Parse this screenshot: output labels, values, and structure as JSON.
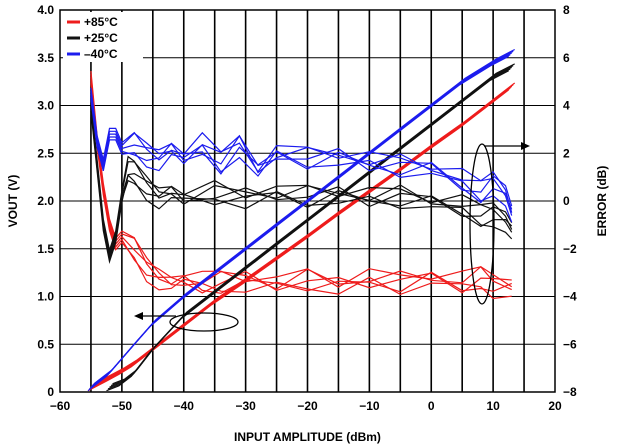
{
  "chart_data": {
    "type": "line",
    "xlabel": "INPUT AMPLITUDE (dBm)",
    "ylabel": "VOUT (V)",
    "y2label": "ERROR (dB)",
    "xlim": [
      -60,
      20
    ],
    "ylim": [
      0,
      4.0
    ],
    "y2lim": [
      -8,
      8
    ],
    "x_ticks": [
      "−60",
      "−50",
      "−40",
      "−30",
      "−20",
      "−10",
      "0",
      "10",
      "20"
    ],
    "y_ticks": [
      "0",
      "0.5",
      "1.0",
      "1.5",
      "2.0",
      "2.5",
      "3.0",
      "3.5",
      "4.0"
    ],
    "y2_ticks": [
      "−8",
      "−6",
      "−4",
      "−2",
      "0",
      "2",
      "4",
      "6",
      "8"
    ],
    "grid": true,
    "legend_position": "top-left",
    "series": [
      {
        "name": "+85°C",
        "color": "#ee1c1c",
        "vout": {
          "x": [
            -55,
            -52,
            -50,
            -48,
            -45,
            -40,
            -35,
            -30,
            -25,
            -20,
            -15,
            -10,
            -5,
            0,
            5,
            10,
            13
          ],
          "y": [
            0.05,
            0.15,
            0.22,
            0.3,
            0.45,
            0.7,
            0.95,
            1.17,
            1.4,
            1.63,
            1.87,
            2.1,
            2.33,
            2.57,
            2.8,
            3.05,
            3.2
          ]
        },
        "error": {
          "x": [
            -55,
            -54,
            -53,
            -52,
            -51,
            -50,
            -48,
            -46,
            -44,
            -42,
            -40,
            -37,
            -34,
            -30,
            -25,
            -20,
            -15,
            -10,
            -5,
            0,
            5,
            8,
            10,
            13
          ],
          "y": [
            5.2,
            2.5,
            0.5,
            -1.0,
            -1.8,
            -1.5,
            -2.0,
            -2.8,
            -3.2,
            -3.4,
            -3.3,
            -3.5,
            -3.4,
            -3.3,
            -3.5,
            -3.3,
            -3.5,
            -3.3,
            -3.4,
            -3.2,
            -3.5,
            -3.2,
            -3.5,
            -3.6
          ]
        }
      },
      {
        "name": "+25°C",
        "color": "#111111",
        "vout": {
          "x": [
            -52,
            -50,
            -48,
            -45,
            -40,
            -35,
            -30,
            -25,
            -20,
            -15,
            -10,
            -5,
            0,
            5,
            10,
            13
          ],
          "y": [
            0.05,
            0.1,
            0.2,
            0.45,
            0.8,
            1.05,
            1.3,
            1.55,
            1.8,
            2.05,
            2.3,
            2.55,
            2.8,
            3.05,
            3.3,
            3.4
          ]
        },
        "error": {
          "x": [
            -55,
            -54,
            -53,
            -52,
            -51,
            -50,
            -49,
            -48,
            -46,
            -44,
            -42,
            -40,
            -35,
            -30,
            -25,
            -20,
            -15,
            -10,
            -5,
            0,
            5,
            8,
            10,
            12,
            13
          ],
          "y": [
            4.0,
            1.5,
            -1.0,
            -2.3,
            -1.5,
            0.2,
            1.3,
            1.2,
            0.6,
            0.2,
            0.4,
            0.1,
            0.3,
            0.2,
            0.3,
            0.2,
            0.3,
            0.1,
            0.2,
            0.0,
            -0.3,
            -0.6,
            -0.5,
            -0.8,
            -1.2
          ]
        }
      },
      {
        "name": "–40°C",
        "color": "#1c1cee",
        "vout": {
          "x": [
            -55,
            -52,
            -50,
            -48,
            -45,
            -40,
            -35,
            -30,
            -25,
            -20,
            -15,
            -10,
            -5,
            0,
            5,
            10,
            13
          ],
          "y": [
            0.05,
            0.2,
            0.35,
            0.5,
            0.72,
            1.0,
            1.25,
            1.5,
            1.75,
            2.0,
            2.25,
            2.5,
            2.75,
            3.0,
            3.25,
            3.45,
            3.55
          ]
        },
        "error": {
          "x": [
            -55,
            -54,
            -53,
            -52,
            -51,
            -50,
            -48,
            -46,
            -44,
            -42,
            -40,
            -37,
            -34,
            -31,
            -28,
            -25,
            -20,
            -15,
            -10,
            -5,
            0,
            5,
            8,
            10,
            12,
            13
          ],
          "y": [
            4.5,
            2.5,
            1.5,
            2.8,
            2.8,
            2.2,
            2.4,
            2.0,
            1.8,
            2.2,
            1.8,
            2.3,
            1.6,
            2.4,
            1.3,
            2.0,
            1.8,
            1.9,
            1.6,
            1.5,
            1.4,
            0.8,
            0.4,
            0.8,
            0.3,
            -0.5
          ]
        }
      }
    ]
  }
}
